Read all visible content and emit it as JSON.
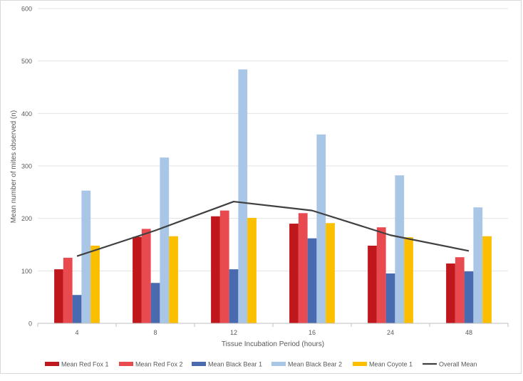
{
  "chart_data": {
    "type": "bar",
    "title": "",
    "xlabel": "Tissue Incubation Period (hours)",
    "ylabel": "Mean number of mites observed (n)",
    "ylim": [
      0,
      600
    ],
    "yticks": [
      "0",
      "100",
      "200",
      "300",
      "400",
      "500",
      "600"
    ],
    "categories": [
      "4",
      "8",
      "12",
      "16",
      "24",
      "48"
    ],
    "grid": true,
    "legend_position": "bottom",
    "series": [
      {
        "name": "Mean Red Fox 1",
        "kind": "bar",
        "color": "#c0171c",
        "values": [
          103,
          165,
          204,
          190,
          148,
          114
        ]
      },
      {
        "name": "Mean Red Fox 2",
        "kind": "bar",
        "color": "#e84a4f",
        "values": [
          125,
          180,
          215,
          210,
          183,
          126
        ]
      },
      {
        "name": "Mean Black Bear 1",
        "kind": "bar",
        "color": "#4a6ab0",
        "values": [
          54,
          77,
          103,
          162,
          95,
          99
        ]
      },
      {
        "name": "Mean Black Bear 2",
        "kind": "bar",
        "color": "#a9c6e6",
        "values": [
          253,
          316,
          484,
          360,
          282,
          221
        ]
      },
      {
        "name": "Mean Coyote 1",
        "kind": "bar",
        "color": "#fbbf00",
        "values": [
          148,
          166,
          201,
          191,
          164,
          166
        ]
      },
      {
        "name": "Overall Mean",
        "kind": "line",
        "color": "#404040",
        "values": [
          128,
          177,
          232,
          215,
          168,
          138
        ]
      }
    ]
  }
}
